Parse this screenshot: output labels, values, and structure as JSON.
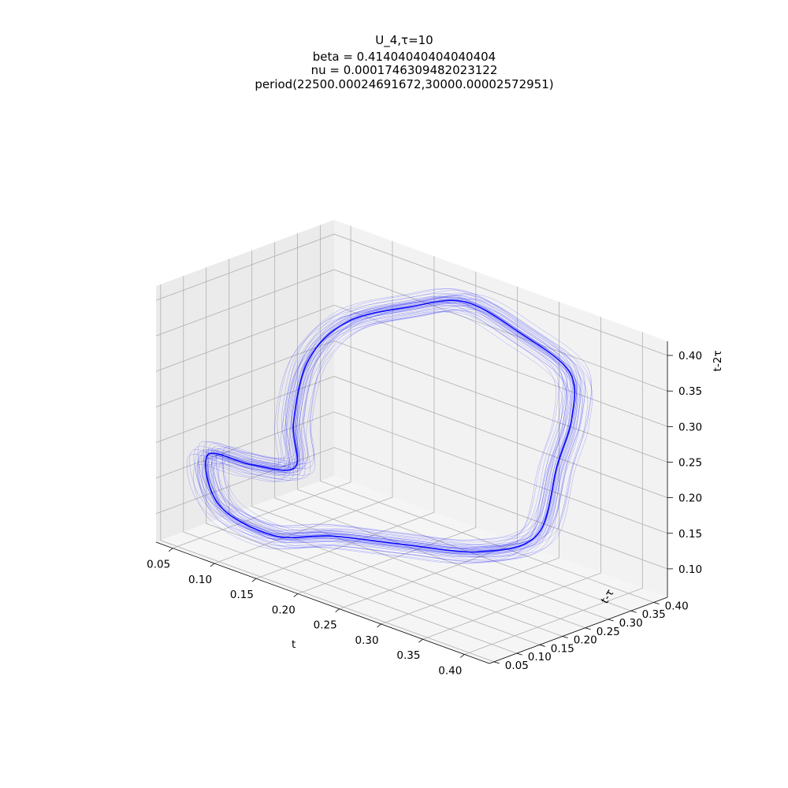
{
  "chart_data": {
    "type": "line",
    "projection": "3d",
    "title": [
      "U_4,τ=10",
      "beta = 0.41404040404040404",
      "nu = 0.0001746309482023122",
      "period(22500.00024691672,30000.00002572951)"
    ],
    "xlabel": "t",
    "ylabel": "t-τ",
    "zlabel": "t-2τ",
    "xticks": [
      "0.05",
      "0.10",
      "0.15",
      "0.20",
      "0.25",
      "0.30",
      "0.35",
      "0.40"
    ],
    "yticks": [
      "0.05",
      "0.10",
      "0.15",
      "0.20",
      "0.25",
      "0.30",
      "0.35",
      "0.40"
    ],
    "zticks": [
      "0.10",
      "0.15",
      "0.20",
      "0.25",
      "0.30",
      "0.35",
      "0.40"
    ],
    "xlim": [
      0.03,
      0.43
    ],
    "ylim": [
      0.04,
      0.43
    ],
    "zlim": [
      0.06,
      0.42
    ],
    "grid": true,
    "series": [
      {
        "color": "#0000ff",
        "points": [
          [
            0.22,
            0.08,
            0.14
          ],
          [
            0.3,
            0.09,
            0.16
          ],
          [
            0.37,
            0.13,
            0.17
          ],
          [
            0.4,
            0.2,
            0.19
          ],
          [
            0.38,
            0.28,
            0.26
          ],
          [
            0.37,
            0.33,
            0.31
          ],
          [
            0.34,
            0.38,
            0.35
          ],
          [
            0.28,
            0.38,
            0.38
          ],
          [
            0.22,
            0.37,
            0.4
          ],
          [
            0.16,
            0.36,
            0.37
          ],
          [
            0.1,
            0.33,
            0.33
          ],
          [
            0.07,
            0.3,
            0.27
          ],
          [
            0.08,
            0.25,
            0.2
          ],
          [
            0.12,
            0.18,
            0.17
          ],
          [
            0.1,
            0.12,
            0.18
          ],
          [
            0.07,
            0.08,
            0.19
          ],
          [
            0.1,
            0.05,
            0.14
          ],
          [
            0.16,
            0.06,
            0.12
          ],
          [
            0.22,
            0.08,
            0.14
          ]
        ]
      }
    ]
  }
}
